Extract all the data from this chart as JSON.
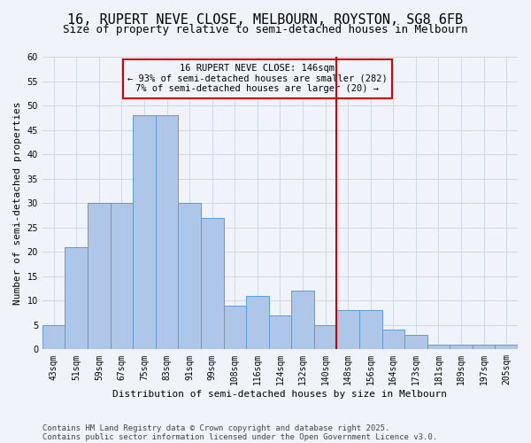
{
  "title1": "16, RUPERT NEVE CLOSE, MELBOURN, ROYSTON, SG8 6FB",
  "title2": "Size of property relative to semi-detached houses in Melbourn",
  "xlabel": "Distribution of semi-detached houses by size in Melbourn",
  "ylabel": "Number of semi-detached properties",
  "categories": [
    "43sqm",
    "51sqm",
    "59sqm",
    "67sqm",
    "75sqm",
    "83sqm",
    "91sqm",
    "99sqm",
    "108sqm",
    "116sqm",
    "124sqm",
    "132sqm",
    "140sqm",
    "148sqm",
    "156sqm",
    "164sqm",
    "173sqm",
    "181sqm",
    "189sqm",
    "197sqm",
    "205sqm"
  ],
  "values": [
    5,
    21,
    30,
    30,
    48,
    48,
    30,
    27,
    9,
    11,
    7,
    12,
    5,
    8,
    8,
    4,
    3,
    1,
    1,
    1,
    1
  ],
  "bar_color": "#aec6e8",
  "bar_edge_color": "#5b9bd5",
  "vline_x_index": 13.0,
  "vline_color": "#cc0000",
  "annotation_line1": "16 RUPERT NEVE CLOSE: 146sqm",
  "annotation_line2": "← 93% of semi-detached houses are smaller (282)",
  "annotation_line3": "7% of semi-detached houses are larger (20) →",
  "annotation_box_color": "#cc0000",
  "ylim": [
    0,
    60
  ],
  "yticks": [
    0,
    5,
    10,
    15,
    20,
    25,
    30,
    35,
    40,
    45,
    50,
    55,
    60
  ],
  "grid_color": "#d0d8e8",
  "background_color": "#f0f4fa",
  "footer1": "Contains HM Land Registry data © Crown copyright and database right 2025.",
  "footer2": "Contains public sector information licensed under the Open Government Licence v3.0.",
  "title_fontsize": 11,
  "subtitle_fontsize": 9,
  "axis_label_fontsize": 8,
  "tick_fontsize": 7,
  "annot_fontsize": 7.5,
  "footer_fontsize": 6.5
}
